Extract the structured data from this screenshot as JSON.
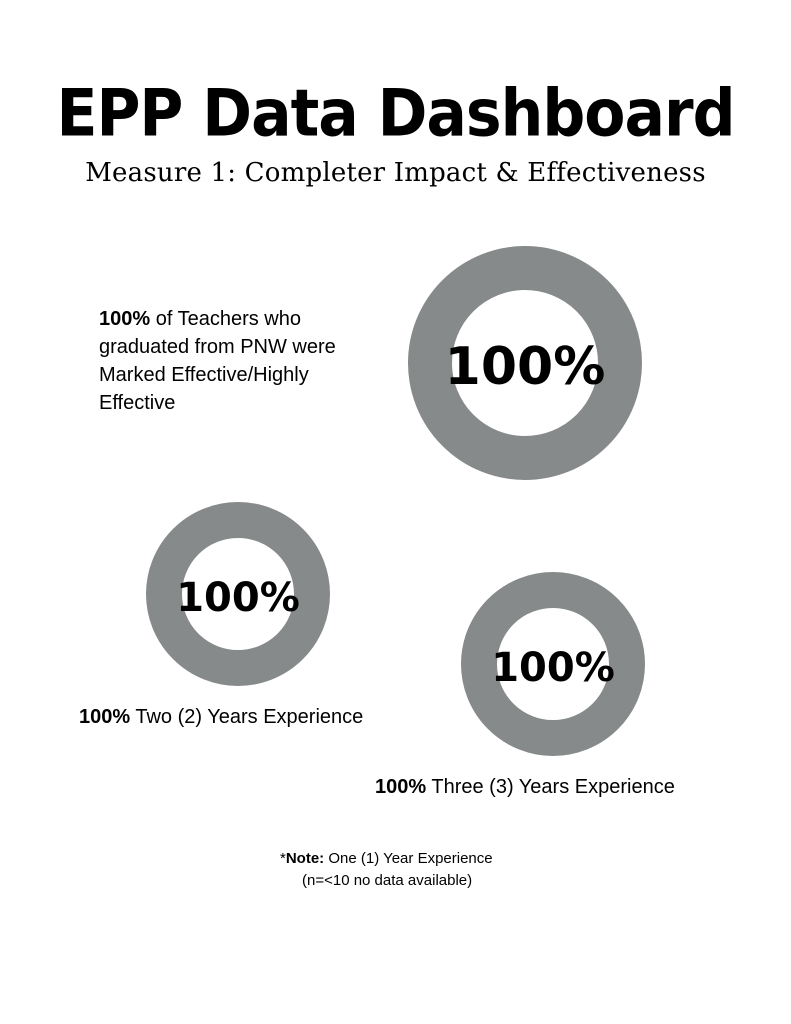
{
  "header": {
    "title": "EPP Data Dashboard",
    "subtitle": "Measure 1: Completer Impact & Effectiveness"
  },
  "colors": {
    "ring": "#878a8a",
    "hole": "#ffffff",
    "text": "#000000"
  },
  "chart_data": [
    {
      "type": "pie",
      "style": "donut",
      "value": 100,
      "unit": "%",
      "label_text": "100%",
      "caption_bold": "100%",
      "caption_text": " of Teachers who graduated from PNW were Marked Effective/Highly Effective"
    },
    {
      "type": "pie",
      "style": "donut",
      "value": 100,
      "unit": "%",
      "label_text": "100%",
      "caption_bold": "100%",
      "caption_text": " Two (2) Years Experience"
    },
    {
      "type": "pie",
      "style": "donut",
      "value": 100,
      "unit": "%",
      "label_text": "100%",
      "caption_bold": "100%",
      "caption_text": " Three (3) Years Experience"
    }
  ],
  "note": {
    "prefix": "*",
    "bold": "Note:",
    "line1": " One (1) Year Experience",
    "line2": "(n=<10 no data available)"
  }
}
